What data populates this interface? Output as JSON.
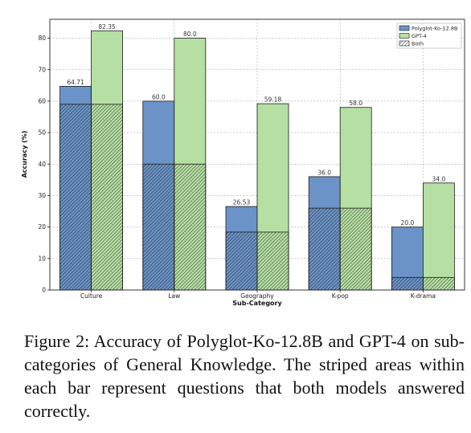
{
  "chart_data": {
    "type": "bar",
    "categories": [
      "Culture",
      "Law",
      "Geography",
      "K-pop",
      "K-drama"
    ],
    "series": [
      {
        "name": "Polyglot-Ko-12.8B",
        "values": [
          64.71,
          60.0,
          26.53,
          36.0,
          20.0
        ],
        "color": "#6b93c7"
      },
      {
        "name": "GPT-4",
        "values": [
          82.35,
          80.0,
          59.18,
          58.0,
          34.0
        ],
        "color": "#b6e0a3"
      }
    ],
    "both": {
      "name": "Both",
      "values": [
        59,
        40,
        18.4,
        26,
        4
      ]
    },
    "value_labels": {
      "Polyglot-Ko-12.8B": [
        "64.71",
        "60.0",
        "26.53",
        "36.0",
        "20.0"
      ],
      "GPT-4": [
        "82.35",
        "80.0",
        "59.18",
        "58.0",
        "34.0"
      ]
    },
    "xlabel": "Sub-Category",
    "ylabel": "Accuracy (%)",
    "ylim": [
      0,
      86
    ],
    "yticks": [
      0,
      10,
      20,
      30,
      40,
      50,
      60,
      70,
      80
    ],
    "grid": true,
    "legend_position": "top-right"
  },
  "caption": "Figure 2: Accuracy of Polyglot-Ko-12.8B and GPT-4 on sub-categories of General Knowledge. The striped areas within each bar represent questions that both models answered correctly."
}
